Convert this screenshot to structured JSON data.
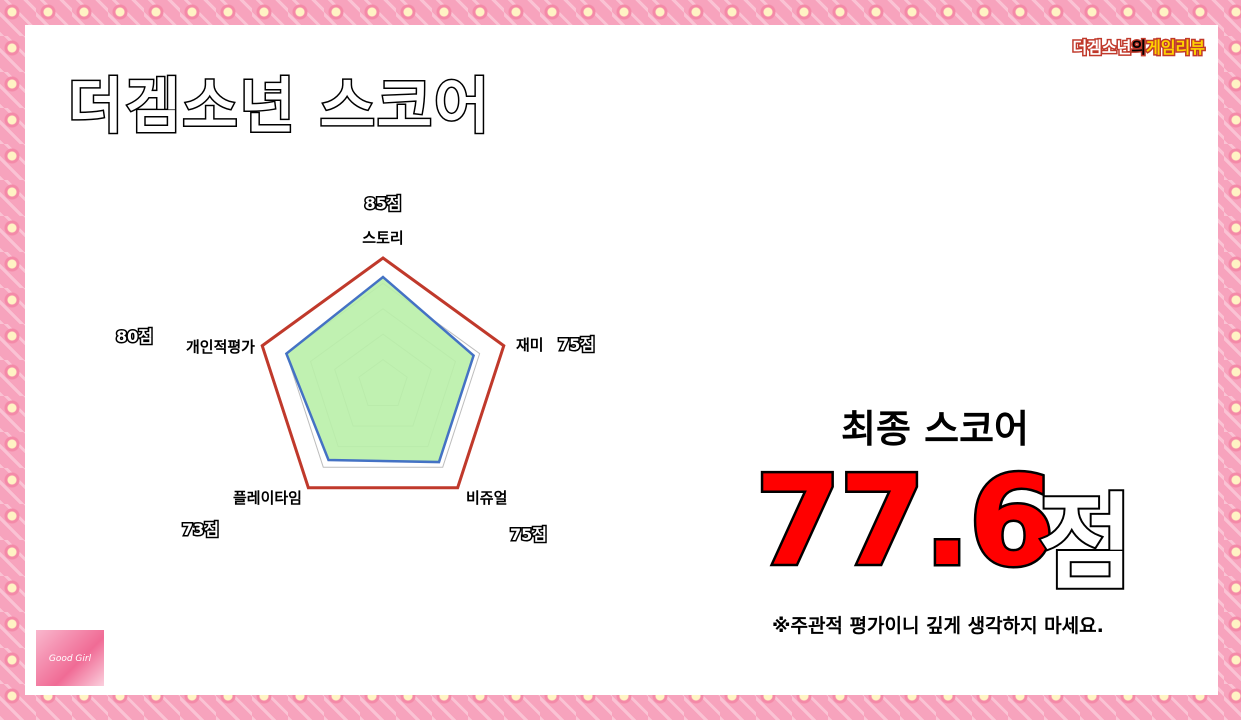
{
  "brand": {
    "part1": "더겜소년",
    "part2": "의",
    "part3": "게임리뷰"
  },
  "title": "더겜소년 스코어",
  "chart_data": {
    "type": "radar",
    "categories": [
      "스토리",
      "재미",
      "비쥬얼",
      "플레이타임",
      "개인적평가"
    ],
    "values": [
      85,
      75,
      75,
      73,
      80
    ],
    "value_labels": [
      "85점",
      "75점",
      "75점",
      "73점",
      "80점"
    ],
    "rmax": 100,
    "grid_levels": [
      20,
      40,
      60,
      80,
      100
    ],
    "colors": {
      "fill": "#b9f0a8",
      "line": "#4472c4",
      "outer": "#c0392b",
      "grid": "#bdbdbd"
    }
  },
  "final": {
    "label": "최종 스코어",
    "score": "77.6",
    "unit": "점"
  },
  "note": "※주관적 평가이니 깊게 생각하지 마세요.",
  "thumbnail": {
    "text": "Good Girl"
  }
}
